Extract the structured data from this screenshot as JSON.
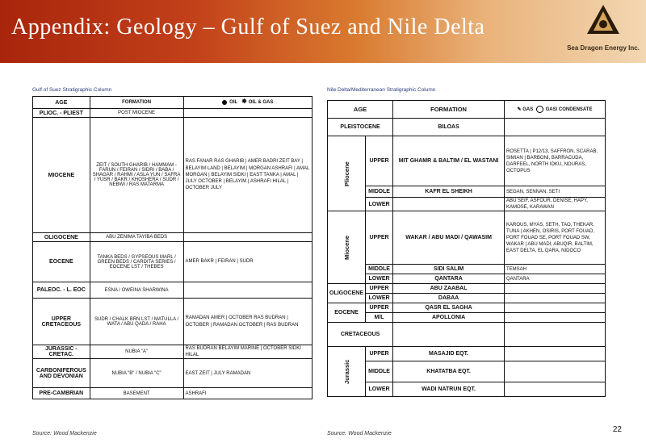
{
  "header": {
    "title": "Appendix: Geology – Gulf of Suez and Nile Delta",
    "company": "Sea Dragon Energy Inc."
  },
  "gulf": {
    "title": "Gulf of Suez Stratigraphic Column",
    "headers": {
      "age": "AGE",
      "formation": "FORMATION",
      "oil": "OIL",
      "oil_gas": "OIL & GAS"
    },
    "rows": [
      {
        "age": "PLIOC. - PLIEST",
        "formation": "POST MIOCENE",
        "fields": ""
      },
      {
        "age": "MIOCENE",
        "formation": "ZEIT / SOUTH GHARIB / HAMMAM - FARUN / FEIRAN / SIDRI / BABA / SHAGAR / RAHMI / ASLA YUN / SAFRA / YUSR / BAKR / KHOSHERA / SUDR / NEBWI / RAS MATARMA",
        "fields": "RAS FANAR  RAS GHARIB | AMER  BADRI  ZEIT BAY | BELAYIM LAND | BELAYIM | MORGAN  ASHRAFI | AMAL  MORGAN | BELAYIM  SIDKI | EAST TANKA | AMAL | JULY  OCTOBER | BELAYIM | ASHRAFI  HILAL | OCTOBER  JULY"
      },
      {
        "age": "OLIGOCENE",
        "formation": "ABU ZENIMA TAYIBA BEDS",
        "fields": ""
      },
      {
        "age": "EOCENE",
        "formation": "TANKA BEDS / GYPSEOUS MARL / GREEN BEDS / CARDITA SERIES / EOCENE LST / THEBES",
        "fields": "AMER  BAKR | FEIRAN | SUDR"
      },
      {
        "age": "PALEOC. - L. EOC",
        "formation": "ESNA / OWEINA SHARWINA",
        "fields": ""
      },
      {
        "age": "UPPER CRETACEOUS",
        "formation": "SUDR / CHALK BRN LST / MATULLA / WATA / ABU QADA / RAHA",
        "fields": "RAMADAN  AMER | OCTOBER  RAS BUDRAN | OCTOBER | RAMADAN  OCTOBER | RAS BUDRAN"
      },
      {
        "age": "JURASSIC - CRETAC.",
        "formation": "NUBIA \"A\"",
        "fields": "RAS BUDRAN  BELAYIM MARINE | OCTOBER  SIDKI  HILAL"
      },
      {
        "age": "CARBONIFEROUS AND DEVONIAN",
        "formation": "NUBIA \"B\" / NUBIA \"C\"",
        "fields": "EAST ZEIT | JULY  RAMADAN"
      },
      {
        "age": "PRE-CAMBRIAN",
        "formation": "BASEMENT",
        "fields": "ASHRAFI"
      }
    ],
    "source": "Source: Wood Mackenzie"
  },
  "nile": {
    "title": "Nile Delta/Mediterranean Stratigraphic Column",
    "headers": {
      "age": "AGE",
      "formation": "FORMATION",
      "gas": "GAS",
      "gas_cond": "GAS/ CONDENSATE"
    },
    "rows": [
      {
        "age": "PLEISTOCENE",
        "sub": "",
        "formation": "BILOAS",
        "fields": ""
      },
      {
        "age": "Pliocene",
        "sub": "UPPER",
        "formation": "MIT GHAMR & BALTIM / EL WASTANI",
        "fields": "ROSETTA | P12/13, SAFFRON, SCARAB, SIMIAN | BARBONI, BARRACUDA, DARFEEL, NORTH IDKU, NOURAS, OCTOPUS"
      },
      {
        "age": "",
        "sub": "MIDDLE",
        "formation": "KAFR EL SHEIKH",
        "fields": "SEGAN, SENNAN, SETI"
      },
      {
        "age": "",
        "sub": "LOWER",
        "formation": "",
        "fields": "ABU SEIF, ASFOUR, DENISE, HAPY, KAMOSE, KARAWAN"
      },
      {
        "age": "Miocene",
        "sub": "UPPER",
        "formation": "WAKAR / ABU MADI / QAWASIM",
        "fields": "KAROUS, MYAS, SETH, TAO, THEKAR, TUNA | AKHEN, OSIRIS, PORT FOUAD, PORT FOUAD SE, PORT FOUAD SW, WAKAR | ABU MADI, ABUQIR, BALTIM, EAST DELTA, EL QARA, NIDOCO"
      },
      {
        "age": "",
        "sub": "MIDDLE",
        "formation": "SIDI SALIM",
        "fields": "TEMSAH"
      },
      {
        "age": "",
        "sub": "LOWER",
        "formation": "QANTARA",
        "fields": "QANTARA"
      },
      {
        "age": "OLIGOCENE",
        "sub": "UPPER",
        "formation": "ABU ZAABAL",
        "fields": ""
      },
      {
        "age": "",
        "sub": "LOWER",
        "formation": "DABAA",
        "fields": ""
      },
      {
        "age": "EOCENE",
        "sub": "UPPER",
        "formation": "QASR EL SAGHA",
        "fields": ""
      },
      {
        "age": "",
        "sub": "M/L",
        "formation": "APOLLONIA",
        "fields": ""
      },
      {
        "age": "CRETACEOUS",
        "sub": "",
        "formation": "",
        "fields": ""
      },
      {
        "age": "Jurassic",
        "sub": "UPPER",
        "formation": "MASAJID EQT.",
        "fields": ""
      },
      {
        "age": "",
        "sub": "MIDDLE",
        "formation": "KHATATBA EQT.",
        "fields": ""
      },
      {
        "age": "",
        "sub": "LOWER",
        "formation": "WADI NATRUN EQT.",
        "fields": ""
      }
    ],
    "source": "Source: Wood Mackenzie"
  },
  "page_number": "22"
}
